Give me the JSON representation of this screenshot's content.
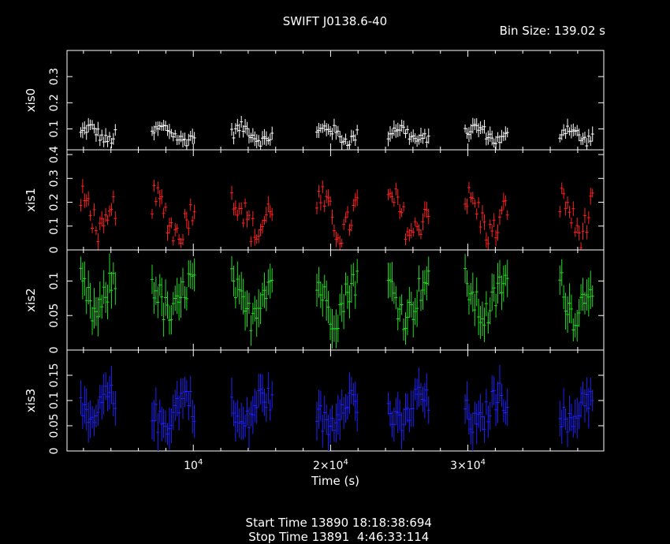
{
  "title": "SWIFT J0138.6-40",
  "bin_size_label": "Bin Size: 139.02 s",
  "footer": {
    "start_label": "Start Time 13890 18:18:38:694",
    "stop_label": "Stop Time 13891  4:46:33:114"
  },
  "colors": {
    "background": "#000000",
    "frame": "#ffffff",
    "xis0": "#ffffff",
    "xis1": "#ff2020",
    "xis2": "#20e020",
    "xis3": "#2020ff"
  },
  "chart_data": {
    "type": "scatter",
    "xlabel": "Time (s)",
    "xlim": [
      800,
      39900
    ],
    "x_ticks": [
      {
        "value": 10000,
        "label": "10^4"
      },
      {
        "value": 20000,
        "label": "2×10^4"
      },
      {
        "value": 30000,
        "label": "3×10^4"
      }
    ],
    "segments": [
      [
        1800,
        4400
      ],
      [
        7000,
        10100
      ],
      [
        12800,
        15800
      ],
      [
        19000,
        22000
      ],
      [
        24200,
        27200
      ],
      [
        29800,
        33000
      ],
      [
        36700,
        39200
      ]
    ],
    "panels": [
      {
        "name": "xis0",
        "ylabel": "xis0",
        "ylim": [
          0.02,
          0.4
        ],
        "ticks": [
          0.1,
          0.2,
          0.3
        ],
        "tick_labels": [
          "0.1",
          "0.2",
          "0.3"
        ],
        "base": 0.08,
        "amp": 0.025,
        "err": 0.025,
        "color": "#ffffff"
      },
      {
        "name": "xis1",
        "ylabel": "xis1",
        "ylim": [
          0,
          0.42
        ],
        "ticks": [
          0,
          0.1,
          0.2,
          0.3,
          0.4
        ],
        "tick_labels": [
          "0",
          "0.1",
          "0.2",
          "0.3",
          "0.4"
        ],
        "base": 0.14,
        "amp": 0.07,
        "err": 0.03,
        "color": "#ff2020"
      },
      {
        "name": "xis2",
        "ylabel": "xis2",
        "ylim": [
          0,
          0.145
        ],
        "ticks": [
          0,
          0.05,
          0.1
        ],
        "tick_labels": [
          "0",
          "0.05",
          "0.1"
        ],
        "base": 0.075,
        "amp": 0.025,
        "err": 0.025,
        "color": "#20e020"
      },
      {
        "name": "xis3",
        "ylabel": "xis3",
        "ylim": [
          0,
          0.2
        ],
        "ticks": [
          0,
          0.05,
          0.1,
          0.15
        ],
        "tick_labels": [
          "0",
          "0.05",
          "0.1",
          "0.15"
        ],
        "base": 0.08,
        "amp": 0.03,
        "err": 0.035,
        "color": "#2020ff"
      }
    ]
  }
}
